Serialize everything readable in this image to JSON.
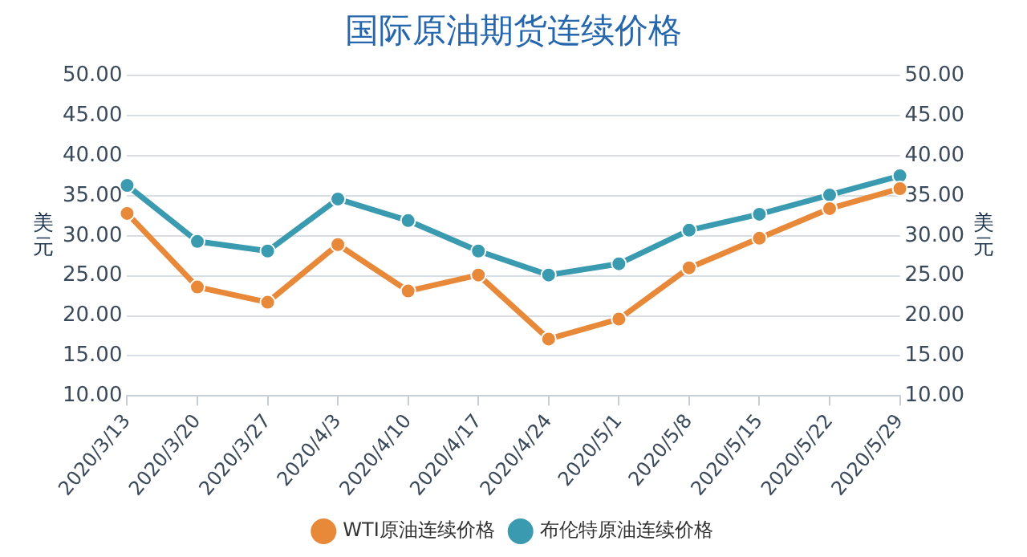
{
  "chart_data": {
    "type": "line",
    "title": "国际原油期货连续价格",
    "ylabel": "美元",
    "y2label": "美元",
    "categories": [
      "2020/3/13",
      "2020/3/20",
      "2020/3/27",
      "2020/4/3",
      "2020/4/10",
      "2020/4/17",
      "2020/4/24",
      "2020/5/1",
      "2020/5/8",
      "2020/5/15",
      "2020/5/22",
      "2020/5/29"
    ],
    "series": [
      {
        "name": "WTI原油连续价格",
        "color": "#e8893a",
        "values": [
          32.8,
          23.6,
          21.7,
          28.9,
          23.1,
          25.1,
          17.1,
          19.6,
          26.0,
          29.7,
          33.4,
          35.9
        ]
      },
      {
        "name": "布伦特原油连续价格",
        "color": "#3a9bb0",
        "values": [
          36.3,
          29.3,
          28.1,
          34.6,
          31.9,
          28.1,
          25.1,
          26.5,
          30.7,
          32.7,
          35.1,
          37.5
        ]
      }
    ],
    "ylim": [
      10,
      50
    ],
    "yticks": [
      {
        "value": 10,
        "label": "10.00"
      },
      {
        "value": 15,
        "label": "15.00"
      },
      {
        "value": 20,
        "label": "20.00"
      },
      {
        "value": 25,
        "label": "25.00"
      },
      {
        "value": 30,
        "label": "30.00"
      },
      {
        "value": 35,
        "label": "35.00"
      },
      {
        "value": 40,
        "label": "40.00"
      },
      {
        "value": 45,
        "label": "45.00"
      },
      {
        "value": 50,
        "label": "50.00"
      }
    ],
    "y2lim": [
      10,
      50
    ],
    "y2ticks": [
      {
        "value": 10,
        "label": "10.00"
      },
      {
        "value": 15,
        "label": "15.00"
      },
      {
        "value": 20,
        "label": "20.00"
      },
      {
        "value": 25,
        "label": "25.00"
      },
      {
        "value": 30,
        "label": "30.00"
      },
      {
        "value": 35,
        "label": "35.00"
      },
      {
        "value": 40,
        "label": "40.00"
      },
      {
        "value": 45,
        "label": "45.00"
      },
      {
        "value": 50,
        "label": "50.00"
      }
    ],
    "grid": "y",
    "legend": "bottom",
    "marker": "circle",
    "line_style": "solid"
  }
}
